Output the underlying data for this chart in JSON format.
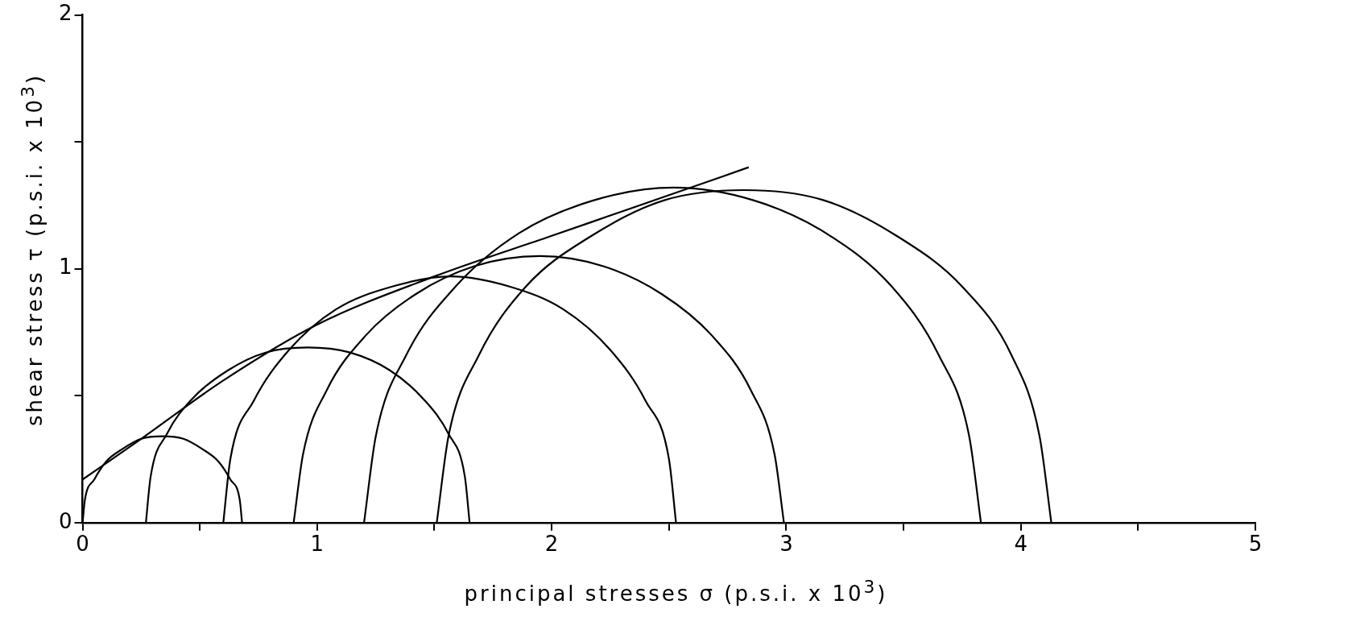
{
  "chart_data": {
    "type": "line",
    "xlabel": "principal stresses σ (p.s.i. x 10$^{3}$)",
    "ylabel": "shear stress τ (p.s.i. x 10$^{3}$)",
    "xlim": [
      0,
      5
    ],
    "xticks": [
      0,
      {
        "value": 0.5,
        "label": null
      },
      1,
      {
        "value": 1.5,
        "label": null
      },
      2,
      {
        "value": 2.5,
        "label": null
      },
      3,
      {
        "value": 3.5,
        "label": null
      },
      4,
      {
        "value": 4.5,
        "label": null
      },
      5
    ],
    "ylim": [
      0,
      2
    ],
    "yticks": [
      0,
      {
        "value": 0.5,
        "label": null
      },
      1,
      {
        "value": 1.5,
        "label": null
      },
      2
    ],
    "grid": false,
    "legend": false,
    "marker": "none",
    "line_style": "solid",
    "series": [
      {
        "color": "#000000",
        "x": [
          0,
          0.01,
          0.05,
          0.1,
          0.17,
          0.25,
          0.34,
          0.43,
          0.51,
          0.58,
          0.63,
          0.67,
          0.68
        ],
        "values": [
          0,
          0.09,
          0.17,
          0.24,
          0.29,
          0.33,
          0.34,
          0.33,
          0.29,
          0.24,
          0.17,
          0.09,
          0
        ]
      },
      {
        "color": "#000000",
        "x": [
          0.27,
          0.29,
          0.36,
          0.47,
          0.62,
          0.78,
          0.96,
          1.14,
          1.31,
          1.45,
          1.56,
          1.63,
          1.65
        ],
        "values": [
          0,
          0.18,
          0.35,
          0.49,
          0.6,
          0.67,
          0.69,
          0.67,
          0.6,
          0.49,
          0.35,
          0.18,
          0
        ]
      },
      {
        "color": "#000000",
        "x": [
          0.6,
          0.63,
          0.73,
          0.88,
          1.08,
          1.32,
          1.57,
          1.82,
          2.05,
          2.25,
          2.4,
          2.5,
          2.53
        ],
        "values": [
          0,
          0.25,
          0.48,
          0.68,
          0.84,
          0.93,
          0.97,
          0.93,
          0.84,
          0.68,
          0.48,
          0.25,
          0
        ]
      },
      {
        "color": "#000000",
        "x": [
          0.9,
          0.94,
          1.04,
          1.21,
          1.42,
          1.67,
          1.95,
          2.22,
          2.47,
          2.68,
          2.85,
          2.95,
          2.99
        ],
        "values": [
          0,
          0.27,
          0.52,
          0.74,
          0.9,
          1.01,
          1.05,
          1.01,
          0.9,
          0.74,
          0.52,
          0.27,
          0
        ]
      },
      {
        "color": "#000000",
        "x": [
          1.2,
          1.25,
          1.38,
          1.59,
          1.86,
          2.18,
          2.52,
          2.86,
          3.17,
          3.45,
          3.65,
          3.78,
          3.83
        ],
        "values": [
          0,
          0.34,
          0.66,
          0.93,
          1.14,
          1.27,
          1.32,
          1.27,
          1.14,
          0.93,
          0.66,
          0.34,
          0
        ]
      },
      {
        "color": "#000000",
        "x": [
          1.51,
          1.56,
          1.69,
          1.89,
          2.17,
          2.48,
          2.82,
          3.16,
          3.47,
          3.75,
          3.96,
          4.08,
          4.13
        ],
        "values": [
          0,
          0.34,
          0.66,
          0.93,
          1.13,
          1.27,
          1.31,
          1.27,
          1.13,
          0.93,
          0.66,
          0.34,
          0
        ]
      },
      {
        "color": "#000000",
        "x": [
          0,
          0.25,
          0.6,
          1.0,
          1.5,
          2.0,
          2.5,
          2.84
        ],
        "values": [
          0.17,
          0.33,
          0.56,
          0.78,
          0.97,
          1.13,
          1.29,
          1.4
        ]
      }
    ]
  }
}
